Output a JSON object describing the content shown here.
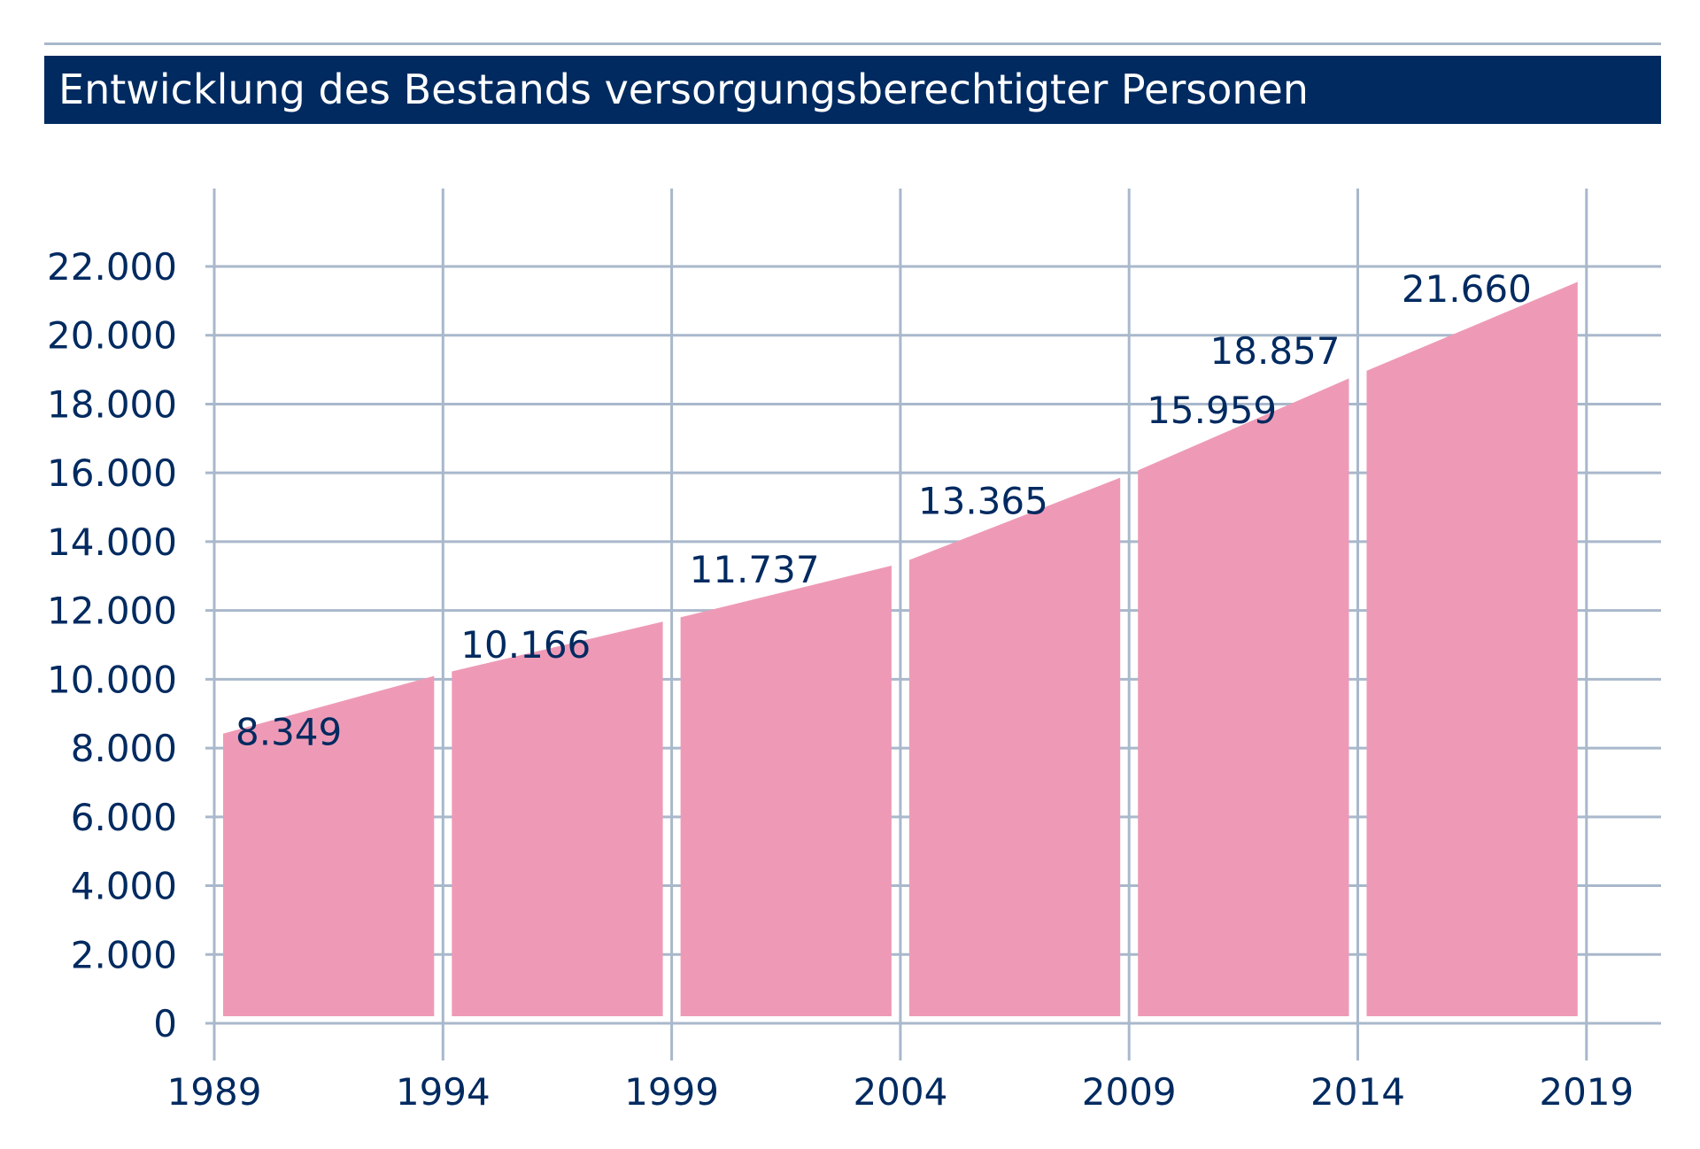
{
  "title": "Entwicklung des Bestands versorgungsberechtigter Personen",
  "colors": {
    "title_bg": "#002a60",
    "area": "#ee9ab6",
    "grid": "#a9b8cb",
    "text": "#002a60"
  },
  "chart_data": {
    "type": "area",
    "title": "Entwicklung des Bestands versorgungsberechtigter Personen",
    "xlabel": "",
    "ylabel": "",
    "x": [
      1989,
      1994,
      1999,
      2004,
      2009,
      2014,
      2019
    ],
    "x_tick_labels": [
      "1989",
      "1994",
      "1999",
      "2004",
      "2009",
      "2014",
      "2019"
    ],
    "series": [
      {
        "values": [
          8349,
          10166,
          11737,
          13365,
          15959,
          18857,
          21660
        ]
      }
    ],
    "data_labels": [
      "8.349",
      "10.166",
      "11.737",
      "13.365",
      "15.959",
      "18.857",
      "21.660"
    ],
    "ylim": [
      0,
      22000
    ],
    "y_ticks": [
      0,
      2000,
      4000,
      6000,
      8000,
      10000,
      12000,
      14000,
      16000,
      18000,
      20000,
      22000
    ],
    "y_tick_labels": [
      "0",
      "2.000",
      "4.000",
      "6.000",
      "8.000",
      "10.000",
      "12.000",
      "14.000",
      "16.000",
      "18.000",
      "20.000",
      "22.000"
    ],
    "grid": true,
    "legend": false
  }
}
